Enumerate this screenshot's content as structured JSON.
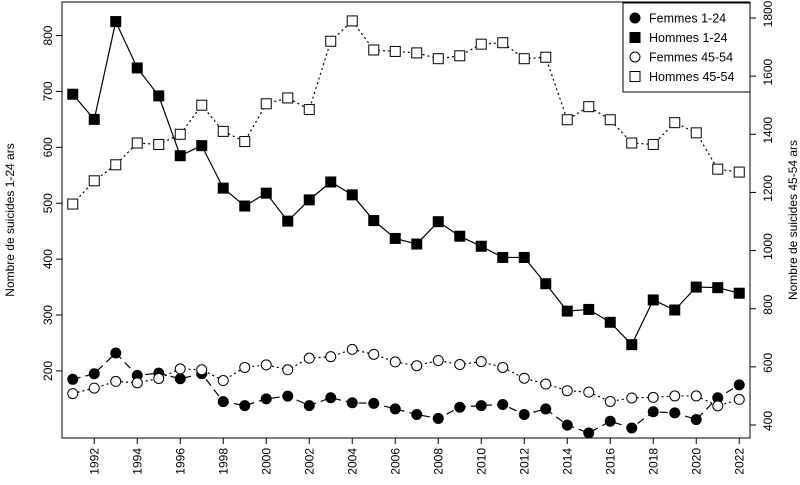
{
  "chart_data": {
    "type": "line",
    "title": "",
    "xlabel": "",
    "ylabel_left": "Nombre de suicides 1-24 ars",
    "ylabel_right": "Nombre de suicides 45-54 ars",
    "x": [
      1991,
      1992,
      1993,
      1994,
      1995,
      1996,
      1997,
      1998,
      1999,
      2000,
      2001,
      2002,
      2003,
      2004,
      2005,
      2006,
      2007,
      2008,
      2009,
      2010,
      2011,
      2012,
      2013,
      2014,
      2015,
      2016,
      2017,
      2018,
      2019,
      2020,
      2021,
      2022
    ],
    "x_ticks": [
      1992,
      1994,
      1996,
      1998,
      2000,
      2002,
      2004,
      2006,
      2008,
      2010,
      2012,
      2014,
      2016,
      2018,
      2020,
      2022
    ],
    "xlim": [
      1990.5,
      2022.5
    ],
    "y_left_ticks": [
      200,
      300,
      400,
      500,
      600,
      700,
      800
    ],
    "y_left_lim": [
      80,
      860
    ],
    "y_right_ticks": [
      400,
      600,
      800,
      1000,
      1200,
      1400,
      1600,
      1800
    ],
    "y_right_lim": [
      400,
      1800
    ],
    "legend_position": "top-right",
    "grid": false,
    "series": [
      {
        "name": "Femmes  1-24",
        "axis": "left",
        "marker": "filled-circle",
        "line": "dashed",
        "values": [
          185,
          195,
          232,
          192,
          196,
          186,
          195,
          145,
          138,
          150,
          155,
          138,
          152,
          143,
          142,
          132,
          122,
          115,
          135,
          138,
          140,
          122,
          132,
          103,
          89,
          110,
          98,
          127,
          125,
          113,
          152,
          175
        ]
      },
      {
        "name": "Hommes 1-24",
        "axis": "left",
        "marker": "filled-square",
        "line": "solid",
        "values": [
          695,
          650,
          825,
          742,
          692,
          585,
          603,
          527,
          495,
          518,
          468,
          506,
          538,
          515,
          469,
          437,
          427,
          467,
          441,
          423,
          403,
          403,
          356,
          307,
          310,
          287,
          247,
          327,
          309,
          350,
          349,
          339
        ]
      },
      {
        "name": "Femmes  45-54",
        "axis": "right",
        "marker": "open-circle",
        "line": "dotted",
        "values": [
          508,
          527,
          550,
          545,
          560,
          593,
          590,
          553,
          598,
          607,
          590,
          630,
          635,
          660,
          643,
          617,
          604,
          622,
          608,
          618,
          598,
          561,
          541,
          518,
          513,
          481,
          493,
          495,
          500,
          500,
          466,
          488
        ]
      },
      {
        "name": "Hommes 45-54",
        "axis": "right",
        "marker": "open-square",
        "line": "dotted",
        "values": [
          1160,
          1240,
          1295,
          1370,
          1365,
          1400,
          1500,
          1410,
          1375,
          1505,
          1525,
          1485,
          1720,
          1790,
          1690,
          1685,
          1680,
          1660,
          1670,
          1710,
          1715,
          1660,
          1665,
          1450,
          1495,
          1450,
          1370,
          1365,
          1440,
          1405,
          1280,
          1270
        ]
      }
    ]
  }
}
